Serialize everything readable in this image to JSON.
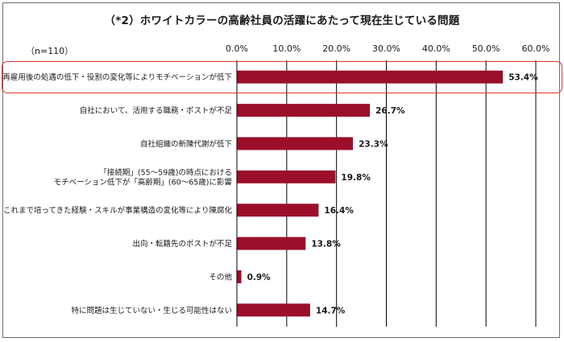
{
  "chart_data": {
    "type": "bar",
    "orientation": "horizontal",
    "title": "（*2）ホワイトカラーの高齢社員の活躍にあたって現在生じている問題",
    "sample_size": "（n=110）",
    "categories": [
      [
        "再雇用後の処遇の低下・役割の変化等によりモチベーションが低下"
      ],
      [
        "自社において、活用する職務・ポストが不足"
      ],
      [
        "自社組織の新陳代謝が低下"
      ],
      [
        "「接続期」(55～59歳)の時点における",
        "モチベーション低下が「高齢期」(60～65歳)に影響"
      ],
      [
        "これまで培ってきた経験・スキルが事業構造の変化等により陳腐化"
      ],
      [
        "出向・転籍先のポストが不足"
      ],
      [
        "その他"
      ],
      [
        "特に問題は生じていない・生じる可能性はない"
      ]
    ],
    "values": [
      53.4,
      26.7,
      23.3,
      19.8,
      16.4,
      13.8,
      0.9,
      14.7
    ],
    "value_labels": [
      "53.4%",
      "26.7%",
      "23.3%",
      "19.8%",
      "16.4%",
      "13.8%",
      "0.9%",
      "14.7%"
    ],
    "xlim": [
      0,
      60
    ],
    "xticks": [
      "0.0%",
      "10.0%",
      "20.0%",
      "30.0%",
      "40.0%",
      "50.0%",
      "60.0%"
    ],
    "grid": true,
    "highlighted_category_index": 0,
    "colors": {
      "bar": "#9b0f2b",
      "gridline": "#000000",
      "highlight_border": "#e8352e",
      "frame": "#6e6e6e"
    }
  }
}
